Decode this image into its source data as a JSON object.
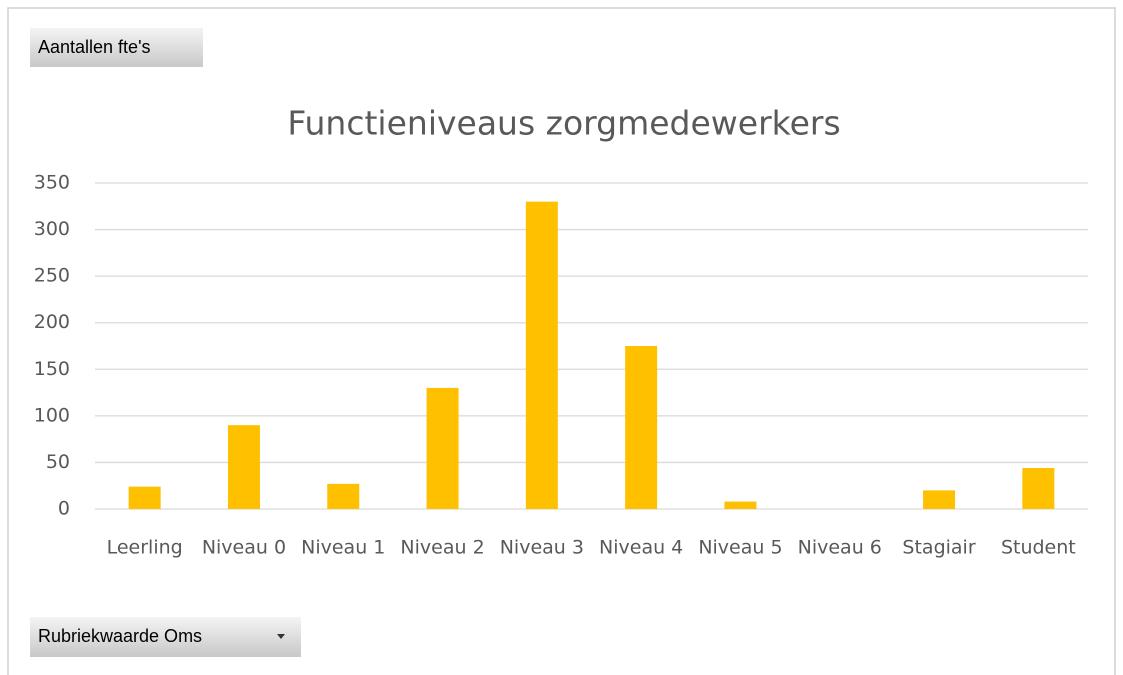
{
  "chart_data": {
    "type": "bar",
    "title": "Functieniveaus zorgmedewerkers",
    "categories": [
      "Leerling",
      "Niveau 0",
      "Niveau 1",
      "Niveau 2",
      "Niveau 3",
      "Niveau 4",
      "Niveau 5",
      "Niveau 6",
      "Stagiair",
      "Student"
    ],
    "values": [
      24,
      90,
      27,
      130,
      330,
      175,
      8,
      0,
      20,
      44
    ],
    "color": "#ffc000",
    "ylim": [
      0,
      350
    ],
    "yticks": [
      0,
      50,
      100,
      150,
      200,
      250,
      300,
      350
    ],
    "grid": true
  },
  "buttons": {
    "value_field": "Aantallen fte's",
    "axis_field": "Rubriekwaarde Oms"
  }
}
